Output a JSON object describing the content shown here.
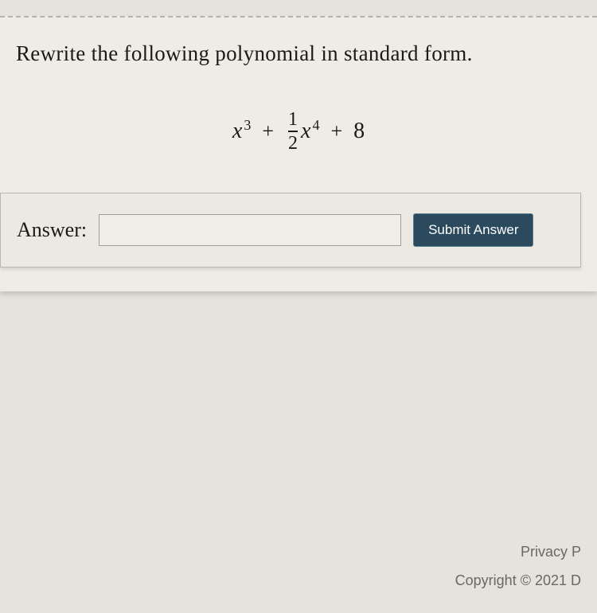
{
  "dashed_divider": true,
  "question": {
    "text": "Rewrite the following polynomial in standard form."
  },
  "equation": {
    "term1": {
      "variable": "x",
      "exponent": "3"
    },
    "op1": "+",
    "term2": {
      "fraction": {
        "numerator": "1",
        "denominator": "2"
      },
      "variable": "x",
      "exponent": "4"
    },
    "op2": "+",
    "term3": {
      "constant": "8"
    }
  },
  "answer_section": {
    "label": "Answer:",
    "input_value": "",
    "submit_label": "Submit Answer"
  },
  "footer": {
    "privacy": "Privacy P",
    "copyright": "Copyright © 2021 D"
  },
  "colors": {
    "background": "#e5e3dc",
    "content_bg": "#eeece5",
    "answer_box_bg": "#ebe9e2",
    "border": "#b8b6af",
    "text": "#1a1a1a",
    "button_bg": "#2b4a5e",
    "button_text": "#ffffff",
    "footer_text": "#6a6862"
  },
  "typography": {
    "question_fontsize": 27,
    "equation_fontsize": 28,
    "label_fontsize": 26,
    "button_fontsize": 17,
    "footer_fontsize": 18
  }
}
